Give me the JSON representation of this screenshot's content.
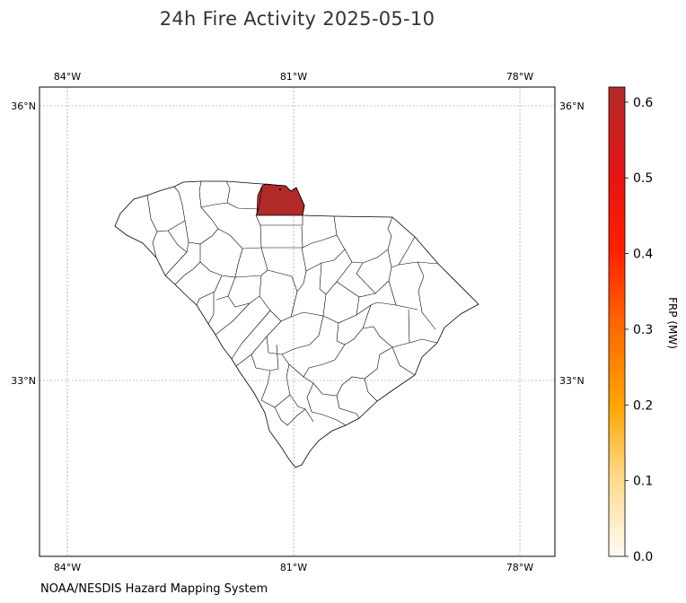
{
  "title": "24h Fire Activity 2025-05-10",
  "credit": "NOAA/NESDIS Hazard Mapping System",
  "map": {
    "region": "South Carolina counties",
    "lon_ticks": [
      "84°W",
      "81°W",
      "78°W"
    ],
    "lat_ticks": [
      "36°N",
      "33°N"
    ],
    "gridlines": true,
    "fire_county_color": "#b02a2a",
    "fire_county_frp_mw": 0.62
  },
  "colorbar": {
    "label": "FRP (MW)",
    "ticks": [
      "0.0",
      "0.1",
      "0.2",
      "0.3",
      "0.4",
      "0.5",
      "0.6"
    ],
    "range": [
      0,
      0.62
    ],
    "colors": [
      "#fffbf2",
      "#ffd27a",
      "#ffa500",
      "#ff6a00",
      "#ff1a00",
      "#dd1818",
      "#b02a2a"
    ]
  }
}
